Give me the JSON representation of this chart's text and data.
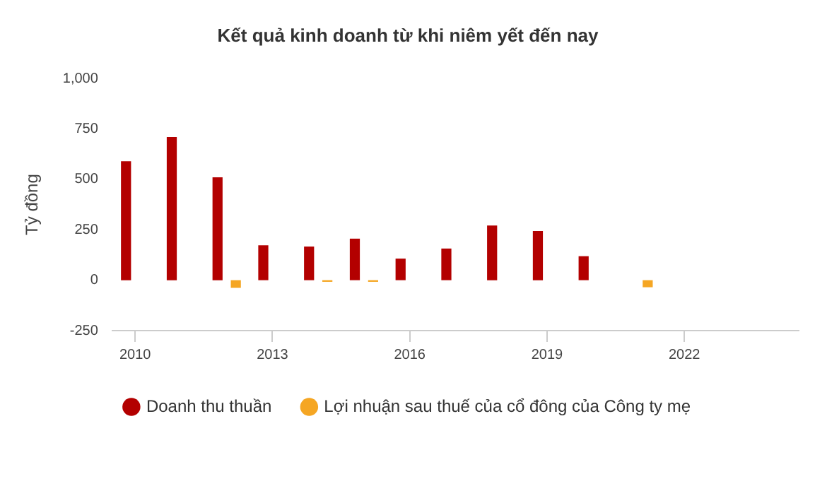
{
  "chart_data": {
    "type": "bar",
    "title": "Kết quả kinh doanh từ khi niêm yết đến nay",
    "ylabel": "Tỷ đồng",
    "categories": [
      "2010",
      null,
      null,
      "2013",
      null,
      null,
      "2016",
      null,
      null,
      "2019",
      null,
      null,
      "2022",
      null,
      null
    ],
    "series": [
      {
        "name": "Doanh thu thuần",
        "color": "#b30000",
        "values": [
          590,
          710,
          510,
          173,
          167,
          206,
          107,
          157,
          271,
          244,
          119,
          null,
          null,
          null,
          null
        ]
      },
      {
        "name": "Lợi nhuận sau thuế của cổ đông của Công ty mẹ",
        "color": "#f5a623",
        "values": [
          null,
          null,
          -38,
          null,
          -8,
          -8,
          null,
          null,
          null,
          null,
          null,
          -35,
          null,
          null,
          null
        ]
      }
    ],
    "ylim": [
      -250,
      1000
    ],
    "yticks": [
      -250,
      0,
      250,
      500,
      750,
      {
        "value": 1000,
        "label": "1,000"
      }
    ],
    "grid": false,
    "legend": "bottom"
  }
}
